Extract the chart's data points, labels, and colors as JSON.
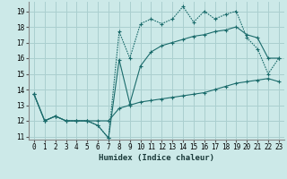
{
  "xlabel": "Humidex (Indice chaleur)",
  "bg_color": "#cce9e8",
  "grid_color": "#aacfcf",
  "line_color": "#1a6b6b",
  "xlim": [
    -0.5,
    23.5
  ],
  "ylim": [
    10.8,
    19.6
  ],
  "yticks": [
    11,
    12,
    13,
    14,
    15,
    16,
    17,
    18,
    19
  ],
  "xticks": [
    0,
    1,
    2,
    3,
    4,
    5,
    6,
    7,
    8,
    9,
    10,
    11,
    12,
    13,
    14,
    15,
    16,
    17,
    18,
    19,
    20,
    21,
    22,
    23
  ],
  "line1_x": [
    0,
    1,
    2,
    3,
    4,
    5,
    6,
    7,
    8,
    9,
    10,
    11,
    12,
    13,
    14,
    15,
    16,
    17,
    18,
    19,
    20,
    21,
    22,
    23
  ],
  "line1_y": [
    13.7,
    12.0,
    12.3,
    12.0,
    12.0,
    12.0,
    12.0,
    12.0,
    12.8,
    13.0,
    13.2,
    13.3,
    13.4,
    13.5,
    13.6,
    13.7,
    13.8,
    14.0,
    14.2,
    14.4,
    14.5,
    14.6,
    14.7,
    14.5
  ],
  "line2_x": [
    0,
    1,
    2,
    3,
    4,
    5,
    6,
    7,
    8,
    9,
    10,
    11,
    12,
    13,
    14,
    15,
    16,
    17,
    18,
    19,
    20,
    21,
    22,
    23
  ],
  "line2_y": [
    13.7,
    12.0,
    12.3,
    12.0,
    12.0,
    12.0,
    11.7,
    10.9,
    15.9,
    13.1,
    15.5,
    16.4,
    16.8,
    17.0,
    17.2,
    17.4,
    17.5,
    17.7,
    17.8,
    18.0,
    17.5,
    17.3,
    16.0,
    16.0
  ],
  "line3_x": [
    0,
    1,
    2,
    3,
    4,
    5,
    6,
    7,
    8,
    9,
    10,
    11,
    12,
    13,
    14,
    15,
    16,
    17,
    18,
    19,
    20,
    21,
    22,
    23
  ],
  "line3_y": [
    13.7,
    12.0,
    12.3,
    12.0,
    12.0,
    12.0,
    11.7,
    10.9,
    17.7,
    16.0,
    18.2,
    18.5,
    18.2,
    18.5,
    19.3,
    18.3,
    19.0,
    18.5,
    18.8,
    19.0,
    17.3,
    16.6,
    15.0,
    16.0
  ]
}
